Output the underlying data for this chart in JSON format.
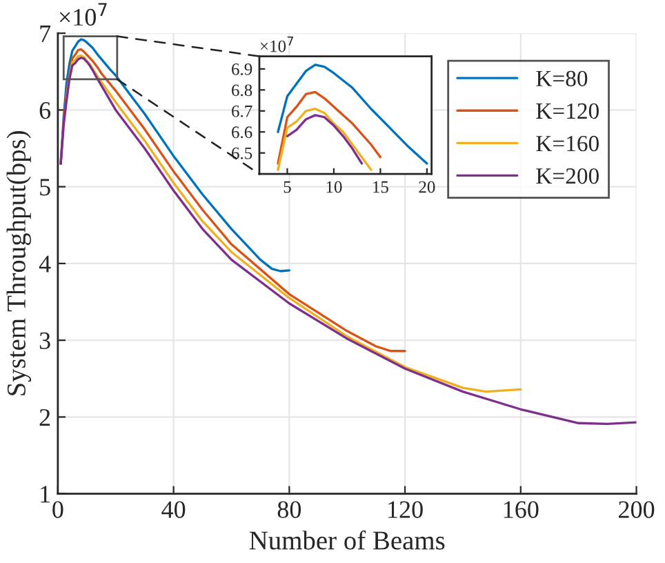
{
  "chart_data": [
    {
      "type": "line",
      "xlabel": "Number of Beams",
      "ylabel": "System Throughput(bps)",
      "annotations": [
        "×10$^{7}$"
      ],
      "xlim": [
        0,
        200
      ],
      "xticks": [
        0,
        40,
        80,
        120,
        160,
        200
      ],
      "ylim": [
        1,
        7
      ],
      "yticks": [
        1,
        2,
        3,
        4,
        5,
        6,
        7
      ],
      "grid": true,
      "legend": "top right",
      "marker": "none",
      "line_style": "solid",
      "series": [
        {
          "name": "K=80",
          "color": "#0072bd",
          "x": [
            1,
            2,
            3,
            4,
            5,
            6,
            7,
            8,
            9,
            10,
            12,
            14,
            16,
            18,
            20,
            25,
            30,
            40,
            50,
            60,
            70,
            74,
            77,
            80
          ],
          "values": [
            5.3,
            5.9,
            6.35,
            6.6,
            6.77,
            6.83,
            6.89,
            6.92,
            6.91,
            6.88,
            6.81,
            6.71,
            6.62,
            6.53,
            6.45,
            6.2,
            5.95,
            5.4,
            4.9,
            4.45,
            4.05,
            3.93,
            3.9,
            3.91
          ]
        },
        {
          "name": "K=120",
          "color": "#d95319",
          "x": [
            1,
            2,
            3,
            4,
            5,
            6,
            7,
            8,
            9,
            10,
            12,
            14,
            15,
            20,
            30,
            40,
            50,
            60,
            80,
            100,
            110,
            115,
            120
          ],
          "values": [
            5.3,
            5.85,
            6.2,
            6.45,
            6.67,
            6.72,
            6.78,
            6.79,
            6.76,
            6.72,
            6.64,
            6.54,
            6.48,
            6.25,
            5.75,
            5.2,
            4.7,
            4.25,
            3.6,
            3.12,
            2.92,
            2.86,
            2.86
          ]
        },
        {
          "name": "K=160",
          "color": "#edb120",
          "x": [
            3,
            4,
            5,
            6,
            7,
            8,
            9,
            10,
            11,
            12,
            13,
            14,
            20,
            30,
            40,
            50,
            60,
            80,
            100,
            120,
            140,
            148,
            160
          ],
          "values": [
            6.15,
            6.42,
            6.62,
            6.65,
            6.7,
            6.71,
            6.69,
            6.64,
            6.6,
            6.54,
            6.48,
            6.42,
            6.1,
            5.6,
            5.05,
            4.55,
            4.15,
            3.55,
            3.05,
            2.65,
            2.38,
            2.33,
            2.36
          ]
        },
        {
          "name": "K=200",
          "color": "#7e2f8e",
          "x": [
            1,
            2,
            3,
            4,
            5,
            6,
            7,
            8,
            9,
            10,
            11,
            12,
            13,
            20,
            30,
            40,
            50,
            60,
            80,
            100,
            120,
            140,
            160,
            180,
            190,
            200
          ],
          "values": [
            5.3,
            5.8,
            6.12,
            6.4,
            6.58,
            6.61,
            6.66,
            6.68,
            6.67,
            6.63,
            6.58,
            6.52,
            6.45,
            6.0,
            5.5,
            4.95,
            4.45,
            4.05,
            3.48,
            3.02,
            2.63,
            2.33,
            2.1,
            1.92,
            1.91,
            1.93
          ]
        }
      ]
    },
    {
      "type": "line",
      "annotations": [
        "×10$^{7}$"
      ],
      "xlim": [
        2,
        20.5
      ],
      "xticks": [
        5,
        10,
        15,
        20
      ],
      "ylim": [
        6.4,
        6.96
      ],
      "yticks": [
        6.5,
        6.6,
        6.7,
        6.8,
        6.9
      ],
      "grid": false,
      "marker": "none",
      "line_style": "solid",
      "series": [
        {
          "color": "#0072bd",
          "x": [
            4,
            5,
            6,
            7,
            8,
            9,
            10,
            12,
            14,
            16,
            18,
            20
          ],
          "values": [
            6.6,
            6.77,
            6.83,
            6.89,
            6.92,
            6.91,
            6.88,
            6.81,
            6.71,
            6.62,
            6.53,
            6.45
          ]
        },
        {
          "color": "#d95319",
          "x": [
            4,
            5,
            6,
            7,
            8,
            9,
            10,
            12,
            14,
            15
          ],
          "values": [
            6.45,
            6.67,
            6.72,
            6.78,
            6.79,
            6.76,
            6.72,
            6.64,
            6.54,
            6.48
          ]
        },
        {
          "color": "#edb120",
          "x": [
            4,
            5,
            6,
            7,
            8,
            9,
            10,
            11,
            12,
            13,
            14
          ],
          "values": [
            6.42,
            6.62,
            6.65,
            6.7,
            6.71,
            6.69,
            6.64,
            6.6,
            6.54,
            6.48,
            6.42
          ]
        },
        {
          "color": "#7e2f8e",
          "x": [
            5,
            6,
            7,
            8,
            9,
            10,
            11,
            12,
            13
          ],
          "values": [
            6.58,
            6.61,
            6.66,
            6.68,
            6.67,
            6.63,
            6.58,
            6.52,
            6.45
          ]
        }
      ]
    }
  ]
}
